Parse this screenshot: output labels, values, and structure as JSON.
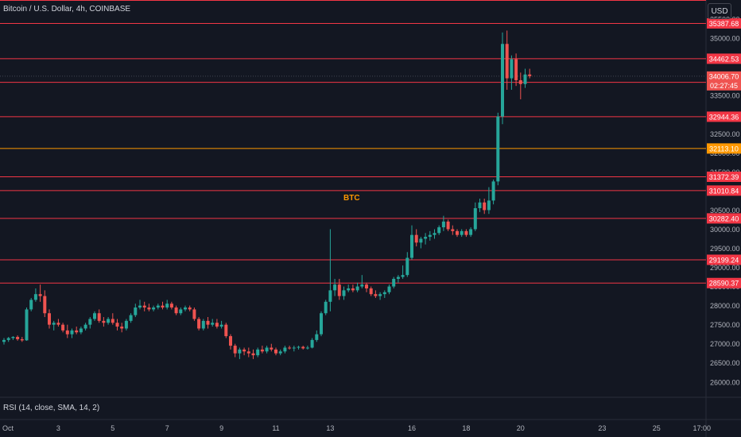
{
  "header": {
    "title": "Bitcoin / U.S. Dollar, 4h, COINBASE",
    "currency": "USD"
  },
  "indicator": {
    "label": "RSI (14, close, SMA, 14, 2)"
  },
  "colors": {
    "background": "#131722",
    "up": "#26a69a",
    "down": "#ef5350",
    "level_line": "#f23645",
    "highlight_line": "#ff9800",
    "text": "#d1d4dc"
  },
  "chart_data": {
    "type": "candlestick",
    "title": "Bitcoin / U.S. Dollar, 4h, COINBASE",
    "ylim": [
      25600,
      36000
    ],
    "y_ticks": [
      26000,
      26500,
      27000,
      27500,
      28000,
      28500,
      29000,
      29500,
      30000,
      30500,
      31000,
      31500,
      32000,
      32500,
      33000,
      33500,
      34000,
      34500,
      35000,
      35500
    ],
    "x_ticks": [
      {
        "label": "Oct",
        "i": 0
      },
      {
        "label": "3",
        "i": 12
      },
      {
        "label": "5",
        "i": 24
      },
      {
        "label": "7",
        "i": 36
      },
      {
        "label": "9",
        "i": 48
      },
      {
        "label": "11",
        "i": 60
      },
      {
        "label": "13",
        "i": 72
      },
      {
        "label": "16",
        "i": 90
      },
      {
        "label": "18",
        "i": 102
      },
      {
        "label": "20",
        "i": 114
      },
      {
        "label": "23",
        "i": 132
      },
      {
        "label": "25",
        "i": 144
      },
      {
        "label": "17:00",
        "i": 154
      }
    ],
    "levels": [
      {
        "label": "35387.68",
        "value": 35387.68,
        "color": "#f23645"
      },
      {
        "label": "34462.53",
        "value": 34462.53,
        "color": "#f23645"
      },
      {
        "label": "33844.35",
        "value": 33844.35,
        "color": "#f23645"
      },
      {
        "label": "32944.36",
        "value": 32944.36,
        "color": "#f23645"
      },
      {
        "label": "32113.10",
        "value": 32113.1,
        "color": "#ff9800"
      },
      {
        "label": "31372.39",
        "value": 31372.39,
        "color": "#f23645"
      },
      {
        "label": "31010.84",
        "value": 31010.84,
        "color": "#f23645"
      },
      {
        "label": "30282.40",
        "value": 30282.4,
        "color": "#f23645"
      },
      {
        "label": "29199.24",
        "value": 29199.24,
        "color": "#f23645"
      },
      {
        "label": "28590.37",
        "value": 28590.37,
        "color": "#f23645"
      }
    ],
    "current_price": {
      "label": "34006.70",
      "value": 34006.7,
      "countdown": "02:27:45"
    },
    "annotations": [
      {
        "text": "BTC"
      }
    ],
    "candles": [
      [
        27050,
        27150,
        26980,
        27100
      ],
      [
        27100,
        27180,
        27050,
        27150
      ],
      [
        27150,
        27200,
        27100,
        27180
      ],
      [
        27180,
        27220,
        27080,
        27120
      ],
      [
        27120,
        27180,
        27050,
        27090
      ],
      [
        27090,
        27950,
        27080,
        27900
      ],
      [
        27900,
        28200,
        27850,
        28150
      ],
      [
        28150,
        28450,
        28100,
        28300
      ],
      [
        28300,
        28550,
        28100,
        28250
      ],
      [
        28250,
        28400,
        27700,
        27800
      ],
      [
        27800,
        27900,
        27400,
        27500
      ],
      [
        27500,
        27600,
        27350,
        27550
      ],
      [
        27550,
        27650,
        27450,
        27500
      ],
      [
        27500,
        27550,
        27300,
        27350
      ],
      [
        27350,
        27500,
        27150,
        27250
      ],
      [
        27250,
        27400,
        27150,
        27350
      ],
      [
        27350,
        27450,
        27250,
        27300
      ],
      [
        27300,
        27450,
        27250,
        27400
      ],
      [
        27400,
        27550,
        27350,
        27500
      ],
      [
        27500,
        27700,
        27400,
        27650
      ],
      [
        27650,
        27850,
        27600,
        27800
      ],
      [
        27800,
        27900,
        27550,
        27600
      ],
      [
        27600,
        27700,
        27450,
        27550
      ],
      [
        27550,
        27700,
        27500,
        27650
      ],
      [
        27650,
        27800,
        27500,
        27550
      ],
      [
        27550,
        27650,
        27350,
        27450
      ],
      [
        27450,
        27550,
        27300,
        27400
      ],
      [
        27400,
        27650,
        27350,
        27600
      ],
      [
        27600,
        27800,
        27550,
        27750
      ],
      [
        27750,
        28050,
        27700,
        27950
      ],
      [
        27950,
        28150,
        27900,
        28000
      ],
      [
        28000,
        28100,
        27850,
        27950
      ],
      [
        27950,
        28050,
        27850,
        27900
      ],
      [
        27900,
        28000,
        27850,
        27950
      ],
      [
        27950,
        28050,
        27900,
        28000
      ],
      [
        28000,
        28100,
        27900,
        27950
      ],
      [
        27950,
        28150,
        27900,
        28050
      ],
      [
        28050,
        28100,
        27900,
        27950
      ],
      [
        27950,
        28000,
        27750,
        27800
      ],
      [
        27800,
        27950,
        27750,
        27900
      ],
      [
        27900,
        28000,
        27850,
        27950
      ],
      [
        27950,
        28000,
        27850,
        27900
      ],
      [
        27900,
        27950,
        27600,
        27650
      ],
      [
        27650,
        27700,
        27350,
        27400
      ],
      [
        27400,
        27650,
        27350,
        27600
      ],
      [
        27600,
        27700,
        27400,
        27500
      ],
      [
        27500,
        27650,
        27450,
        27550
      ],
      [
        27550,
        27650,
        27400,
        27450
      ],
      [
        27450,
        27600,
        27400,
        27500
      ],
      [
        27500,
        27550,
        27150,
        27200
      ],
      [
        27200,
        27250,
        26850,
        26950
      ],
      [
        26950,
        27000,
        26650,
        26750
      ],
      [
        26750,
        26900,
        26600,
        26850
      ],
      [
        26850,
        26900,
        26700,
        26800
      ],
      [
        26800,
        26900,
        26650,
        26750
      ],
      [
        26750,
        26850,
        26600,
        26700
      ],
      [
        26700,
        26900,
        26650,
        26850
      ],
      [
        26850,
        26950,
        26750,
        26800
      ],
      [
        26800,
        26950,
        26750,
        26900
      ],
      [
        26900,
        27000,
        26800,
        26850
      ],
      [
        26850,
        26900,
        26700,
        26750
      ],
      [
        26750,
        26850,
        26700,
        26800
      ],
      [
        26800,
        26950,
        26750,
        26900
      ],
      [
        26900,
        26950,
        26850,
        26880
      ],
      [
        26880,
        26950,
        26800,
        26900
      ],
      [
        26900,
        26950,
        26850,
        26920
      ],
      [
        26920,
        26950,
        26850,
        26880
      ],
      [
        26880,
        26950,
        26850,
        26900
      ],
      [
        26900,
        27150,
        26880,
        27100
      ],
      [
        27100,
        27350,
        27050,
        27250
      ],
      [
        27250,
        27850,
        27200,
        27800
      ],
      [
        27800,
        28150,
        27750,
        28100
      ],
      [
        28100,
        30000,
        27850,
        28400
      ],
      [
        28400,
        28700,
        28250,
        28550
      ],
      [
        28550,
        28700,
        28150,
        28250
      ],
      [
        28250,
        28500,
        28150,
        28400
      ],
      [
        28400,
        28550,
        28350,
        28450
      ],
      [
        28450,
        28550,
        28350,
        28400
      ],
      [
        28400,
        28600,
        28350,
        28500
      ],
      [
        28500,
        28800,
        28450,
        28550
      ],
      [
        28550,
        28600,
        28350,
        28450
      ],
      [
        28450,
        28500,
        28250,
        28300
      ],
      [
        28300,
        28400,
        28200,
        28250
      ],
      [
        28250,
        28350,
        28150,
        28300
      ],
      [
        28300,
        28400,
        28200,
        28350
      ],
      [
        28350,
        28550,
        28300,
        28500
      ],
      [
        28500,
        28750,
        28450,
        28700
      ],
      [
        28700,
        28800,
        28600,
        28750
      ],
      [
        28750,
        29050,
        28700,
        28800
      ],
      [
        28800,
        29400,
        28750,
        29250
      ],
      [
        29250,
        30100,
        29200,
        29850
      ],
      [
        29850,
        30000,
        29550,
        29650
      ],
      [
        29650,
        29800,
        29500,
        29750
      ],
      [
        29750,
        29900,
        29600,
        29800
      ],
      [
        29800,
        29950,
        29700,
        29850
      ],
      [
        29850,
        30000,
        29750,
        29900
      ],
      [
        29900,
        30100,
        29850,
        30050
      ],
      [
        30050,
        30350,
        29950,
        30200
      ],
      [
        30200,
        30250,
        29950,
        30000
      ],
      [
        30000,
        30100,
        29850,
        29950
      ],
      [
        29950,
        30000,
        29800,
        29850
      ],
      [
        29850,
        30000,
        29800,
        29950
      ],
      [
        29950,
        30000,
        29800,
        29850
      ],
      [
        29850,
        30050,
        29800,
        30000
      ],
      [
        30000,
        30700,
        29950,
        30550
      ],
      [
        30550,
        30800,
        30450,
        30700
      ],
      [
        30700,
        30800,
        30400,
        30500
      ],
      [
        30500,
        31100,
        30400,
        30750
      ],
      [
        30750,
        31300,
        30650,
        31250
      ],
      [
        31250,
        33050,
        31150,
        32950
      ],
      [
        32950,
        35150,
        32750,
        34850
      ],
      [
        34850,
        35200,
        33650,
        33950
      ],
      [
        33950,
        34550,
        33650,
        34450
      ],
      [
        34450,
        34600,
        33750,
        33900
      ],
      [
        33900,
        34100,
        33400,
        33800
      ],
      [
        33800,
        34200,
        33700,
        34050
      ],
      [
        34050,
        34200,
        33950,
        34007
      ]
    ]
  }
}
